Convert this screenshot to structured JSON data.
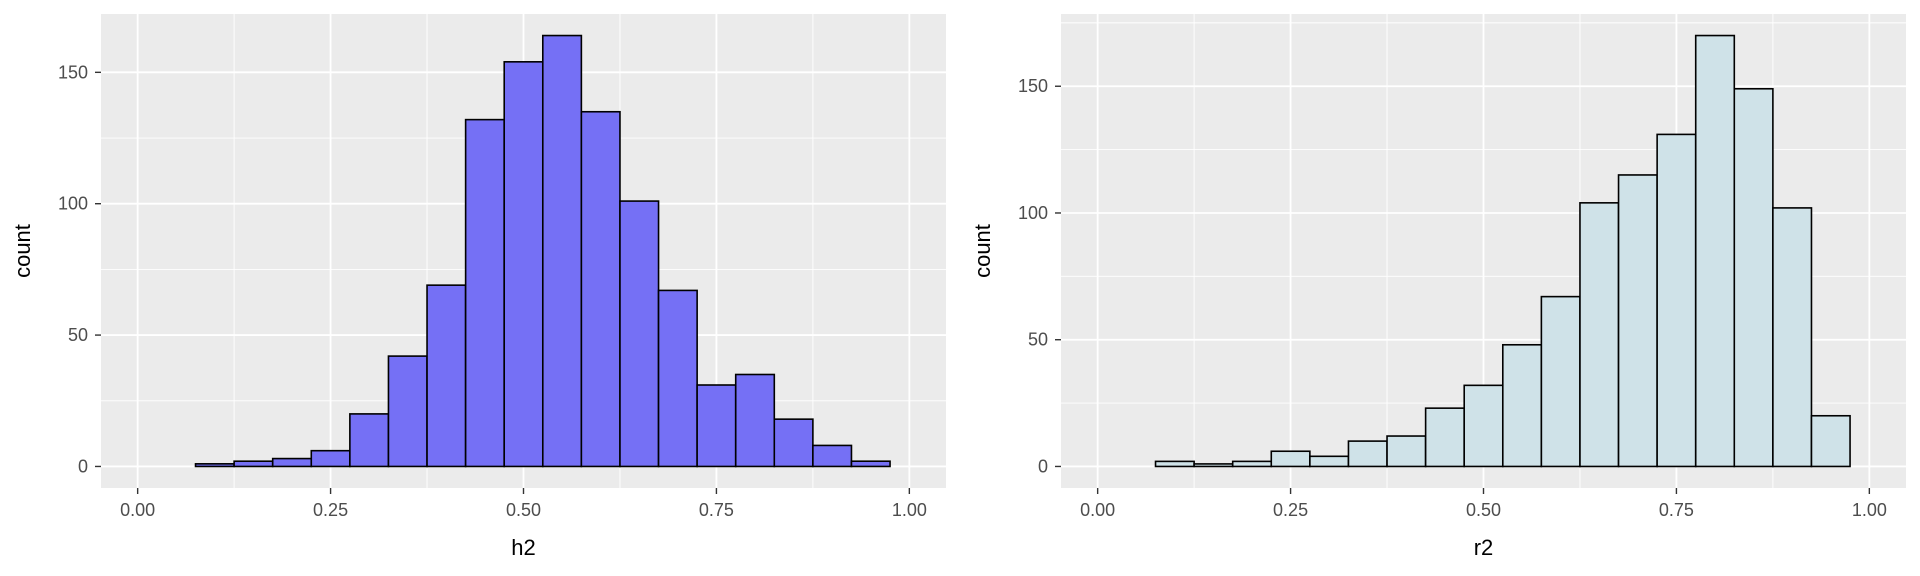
{
  "chart_data": [
    {
      "type": "bar",
      "xlabel": "h2",
      "ylabel": "count",
      "xlim": [
        -0.0475,
        1.0475
      ],
      "ylim": [
        -8.2,
        172.2
      ],
      "x_ticks": [
        "0.00",
        "0.25",
        "0.50",
        "0.75",
        "1.00"
      ],
      "x_tick_values": [
        0.0,
        0.25,
        0.5,
        0.75,
        1.0
      ],
      "y_ticks": [
        "0",
        "50",
        "100",
        "150"
      ],
      "y_tick_values": [
        0,
        50,
        100,
        150
      ],
      "bin_width": 0.05,
      "bin_centers": [
        0.05,
        0.1,
        0.15,
        0.2,
        0.25,
        0.3,
        0.35,
        0.4,
        0.45,
        0.5,
        0.55,
        0.6,
        0.65,
        0.7,
        0.75,
        0.8,
        0.85,
        0.9,
        0.95
      ],
      "values": [
        0,
        1,
        2,
        3,
        6,
        20,
        42,
        69,
        132,
        154,
        164,
        135,
        101,
        67,
        31,
        35,
        18,
        8,
        2
      ],
      "fill_color": "#7570f5",
      "grid": true,
      "background": "#ebebeb"
    },
    {
      "type": "bar",
      "xlabel": "r2",
      "ylabel": "count",
      "xlim": [
        -0.0475,
        1.0475
      ],
      "ylim": [
        -8.5,
        178.5
      ],
      "x_ticks": [
        "0.00",
        "0.25",
        "0.50",
        "0.75",
        "1.00"
      ],
      "x_tick_values": [
        0.0,
        0.25,
        0.5,
        0.75,
        1.0
      ],
      "y_ticks": [
        "0",
        "50",
        "100",
        "150"
      ],
      "y_tick_values": [
        0,
        50,
        100,
        150
      ],
      "bin_width": 0.05,
      "bin_centers": [
        0.05,
        0.1,
        0.15,
        0.2,
        0.25,
        0.3,
        0.35,
        0.4,
        0.45,
        0.5,
        0.55,
        0.6,
        0.65,
        0.7,
        0.75,
        0.8,
        0.85,
        0.9,
        0.95
      ],
      "values": [
        0,
        2,
        1,
        2,
        6,
        4,
        10,
        12,
        23,
        32,
        48,
        67,
        104,
        115,
        131,
        170,
        149,
        102,
        20
      ],
      "fill_color": "#cfe2e8",
      "grid": true,
      "background": "#ebebeb"
    }
  ]
}
